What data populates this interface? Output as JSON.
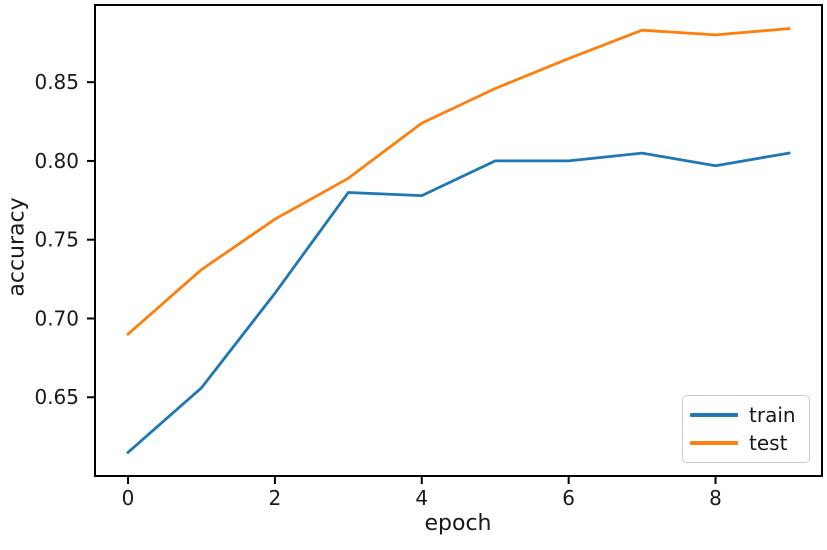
{
  "chart_data": {
    "type": "line",
    "title": "",
    "xlabel": "epoch",
    "ylabel": "accuracy",
    "x": [
      0,
      1,
      2,
      3,
      4,
      5,
      6,
      7,
      8,
      9
    ],
    "series": [
      {
        "name": "train",
        "color": "#1f77b4",
        "values": [
          0.615,
          0.656,
          0.716,
          0.78,
          0.778,
          0.8,
          0.8,
          0.805,
          0.797,
          0.805
        ]
      },
      {
        "name": "test",
        "color": "#ff7f0e",
        "values": [
          0.69,
          0.731,
          0.763,
          0.789,
          0.824,
          0.846,
          0.865,
          0.883,
          0.88,
          0.884
        ]
      }
    ],
    "xlim": [
      -0.45,
      9.45
    ],
    "ylim": [
      0.6,
      0.899
    ],
    "xticks": [
      0,
      2,
      4,
      6,
      8
    ],
    "xtick_labels": [
      "0",
      "2",
      "4",
      "6",
      "8"
    ],
    "yticks": [
      0.65,
      0.7,
      0.75,
      0.8,
      0.85
    ],
    "ytick_labels": [
      "0.65",
      "0.70",
      "0.75",
      "0.80",
      "0.85"
    ],
    "grid": false,
    "legend_position": "lower right"
  },
  "colors": {
    "axis": "#000000",
    "tick_text": "#1a1a1a",
    "legend_border": "#cccccc",
    "background": "#ffffff"
  }
}
